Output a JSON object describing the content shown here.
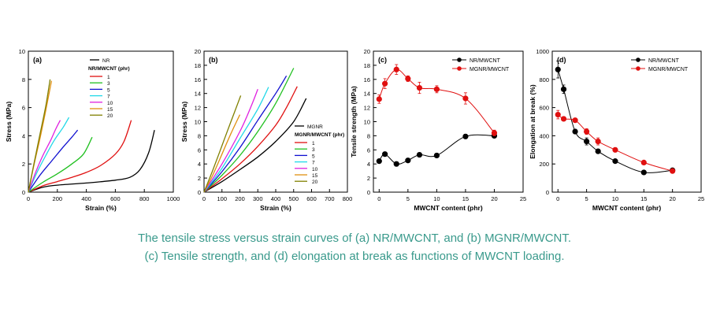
{
  "caption": {
    "line1": "The tensile stress versus strain curves of (a) NR/MWCNT, and (b) MGNR/MWCNT.",
    "line2": "(c) Tensile strength, and (d) elongation at break as functions of MWCNT loading."
  },
  "chart_data": [
    {
      "type": "line",
      "panel_label": "(a)",
      "xlabel": "Strain (%)",
      "ylabel": "Stress (MPa)",
      "xlim": [
        0,
        1000
      ],
      "ylim": [
        0,
        10
      ],
      "xticks": [
        0,
        200,
        400,
        600,
        800,
        1000
      ],
      "yticks": [
        0,
        2,
        4,
        6,
        8,
        10
      ],
      "legend_title": "NR/MWCNT (phr)",
      "legend_placement": "top-center",
      "grid": false,
      "series": [
        {
          "name": "NR",
          "color": "#000000",
          "points": [
            [
              0,
              0
            ],
            [
              100,
              0.35
            ],
            [
              200,
              0.5
            ],
            [
              400,
              0.65
            ],
            [
              600,
              0.85
            ],
            [
              700,
              1.05
            ],
            [
              770,
              1.6
            ],
            [
              830,
              2.8
            ],
            [
              870,
              4.4
            ]
          ]
        },
        {
          "name": "1",
          "color": "#e01010",
          "points": [
            [
              0,
              0
            ],
            [
              100,
              0.45
            ],
            [
              200,
              0.75
            ],
            [
              300,
              1.05
            ],
            [
              400,
              1.4
            ],
            [
              500,
              1.9
            ],
            [
              600,
              2.7
            ],
            [
              660,
              3.6
            ],
            [
              710,
              5.1
            ]
          ]
        },
        {
          "name": "3",
          "color": "#20c020",
          "points": [
            [
              0,
              0
            ],
            [
              100,
              0.7
            ],
            [
              200,
              1.3
            ],
            [
              300,
              2.0
            ],
            [
              380,
              2.7
            ],
            [
              440,
              3.9
            ]
          ]
        },
        {
          "name": "5",
          "color": "#1010d0",
          "points": [
            [
              0,
              0
            ],
            [
              80,
              1.2
            ],
            [
              160,
              2.2
            ],
            [
              240,
              3.2
            ],
            [
              300,
              3.9
            ],
            [
              340,
              4.4
            ]
          ]
        },
        {
          "name": "7",
          "color": "#20d8e8",
          "points": [
            [
              0,
              0
            ],
            [
              60,
              1.4
            ],
            [
              120,
              2.6
            ],
            [
              180,
              3.7
            ],
            [
              240,
              4.6
            ],
            [
              280,
              5.3
            ]
          ]
        },
        {
          "name": "10",
          "color": "#e020e0",
          "points": [
            [
              0,
              0
            ],
            [
              50,
              1.4
            ],
            [
              100,
              2.6
            ],
            [
              150,
              3.6
            ],
            [
              190,
              4.5
            ],
            [
              220,
              5.1
            ]
          ]
        },
        {
          "name": "15",
          "color": "#e09010",
          "points": [
            [
              0,
              0
            ],
            [
              40,
              2.0
            ],
            [
              80,
              3.8
            ],
            [
              120,
              5.8
            ],
            [
              160,
              7.9
            ]
          ]
        },
        {
          "name": "20",
          "color": "#808000",
          "points": [
            [
              0,
              0
            ],
            [
              40,
              2.1
            ],
            [
              80,
              4.1
            ],
            [
              120,
              6.1
            ],
            [
              150,
              8.0
            ]
          ]
        }
      ]
    },
    {
      "type": "line",
      "panel_label": "(b)",
      "xlabel": "Strain (%)",
      "ylabel": "Stress (MPa)",
      "xlim": [
        0,
        800
      ],
      "ylim": [
        0,
        20
      ],
      "xticks": [
        0,
        100,
        200,
        300,
        400,
        500,
        600,
        700,
        800
      ],
      "yticks": [
        0,
        2,
        4,
        6,
        8,
        10,
        12,
        14,
        16,
        18,
        20
      ],
      "legend_title": "MGNR/MWCNT (phr)",
      "legend_placement": "right",
      "grid": false,
      "series": [
        {
          "name": "MGNR",
          "color": "#000000",
          "points": [
            [
              0,
              0
            ],
            [
              100,
              1.5
            ],
            [
              200,
              3.2
            ],
            [
              300,
              5.0
            ],
            [
              400,
              7.2
            ],
            [
              500,
              10.0
            ],
            [
              570,
              13.3
            ]
          ]
        },
        {
          "name": "1",
          "color": "#e01010",
          "points": [
            [
              0,
              0
            ],
            [
              100,
              1.9
            ],
            [
              200,
              4.0
            ],
            [
              300,
              6.5
            ],
            [
              400,
              9.5
            ],
            [
              460,
              12.0
            ],
            [
              520,
              15.0
            ]
          ]
        },
        {
          "name": "3",
          "color": "#20c020",
          "points": [
            [
              0,
              0
            ],
            [
              100,
              2.4
            ],
            [
              200,
              5.2
            ],
            [
              300,
              8.6
            ],
            [
              400,
              12.6
            ],
            [
              500,
              17.6
            ]
          ]
        },
        {
          "name": "5",
          "color": "#1010d0",
          "points": [
            [
              0,
              0
            ],
            [
              100,
              2.9
            ],
            [
              200,
              6.3
            ],
            [
              300,
              10.2
            ],
            [
              400,
              14.0
            ],
            [
              460,
              16.5
            ]
          ]
        },
        {
          "name": "7",
          "color": "#20d8e8",
          "points": [
            [
              0,
              0
            ],
            [
              100,
              3.4
            ],
            [
              200,
              7.6
            ],
            [
              300,
              11.8
            ],
            [
              360,
              14.9
            ]
          ]
        },
        {
          "name": "10",
          "color": "#e020e0",
          "points": [
            [
              0,
              0
            ],
            [
              100,
              4.0
            ],
            [
              200,
              8.6
            ],
            [
              260,
              12.0
            ],
            [
              300,
              14.6
            ]
          ]
        },
        {
          "name": "15",
          "color": "#e09010",
          "points": [
            [
              0,
              0
            ],
            [
              50,
              2.5
            ],
            [
              100,
              5.4
            ],
            [
              150,
              8.3
            ],
            [
              200,
              11.0
            ]
          ]
        },
        {
          "name": "20",
          "color": "#808000",
          "points": [
            [
              0,
              0
            ],
            [
              50,
              3.2
            ],
            [
              100,
              6.6
            ],
            [
              150,
              10.0
            ],
            [
              205,
              13.7
            ]
          ]
        }
      ]
    },
    {
      "type": "scatter",
      "panel_label": "(c)",
      "xlabel": "MWCNT content (phr)",
      "ylabel": "Tensile strength (MPa)",
      "xlim": [
        -1,
        25
      ],
      "ylim": [
        0,
        20
      ],
      "xticks": [
        0,
        5,
        10,
        15,
        20,
        25
      ],
      "yticks": [
        0,
        2,
        4,
        6,
        8,
        10,
        12,
        14,
        16,
        18,
        20
      ],
      "legend_placement": "top-right",
      "grid": false,
      "x": [
        0,
        1,
        3,
        5,
        7,
        10,
        15,
        20
      ],
      "series": [
        {
          "name": "NR/MWCNT",
          "color": "#000000",
          "values": [
            4.4,
            5.4,
            4.0,
            4.5,
            5.3,
            5.2,
            7.9,
            8.0
          ],
          "errors": [
            0.3,
            0.3,
            0.3,
            0.3,
            0.3,
            0.3,
            0.3,
            0.3
          ]
        },
        {
          "name": "MGNR/MWCNT",
          "color": "#e01010",
          "values": [
            13.2,
            15.4,
            17.4,
            16.1,
            14.8,
            14.6,
            13.3,
            8.4
          ],
          "errors": [
            0.6,
            0.7,
            0.7,
            0.4,
            0.8,
            0.5,
            0.8,
            0.4
          ]
        }
      ]
    },
    {
      "type": "scatter",
      "panel_label": "(d)",
      "xlabel": "MWCNT content (phr)",
      "ylabel": "Elongation at break (%)",
      "xlim": [
        -1,
        25
      ],
      "ylim": [
        0,
        1000
      ],
      "xticks": [
        0,
        5,
        10,
        15,
        20,
        25
      ],
      "yticks": [
        0,
        200,
        400,
        600,
        800,
        1000
      ],
      "legend_placement": "top-right",
      "grid": false,
      "x": [
        0,
        1,
        3,
        5,
        7,
        10,
        15,
        20
      ],
      "series": [
        {
          "name": "NR/MWCNT",
          "color": "#000000",
          "values": [
            870,
            730,
            430,
            360,
            290,
            220,
            140,
            155
          ],
          "errors": [
            60,
            30,
            15,
            25,
            15,
            10,
            10,
            10
          ]
        },
        {
          "name": "MGNR/MWCNT",
          "color": "#e01010",
          "values": [
            550,
            520,
            510,
            430,
            360,
            300,
            210,
            150
          ],
          "errors": [
            30,
            15,
            15,
            20,
            25,
            15,
            10,
            10
          ]
        }
      ]
    }
  ]
}
